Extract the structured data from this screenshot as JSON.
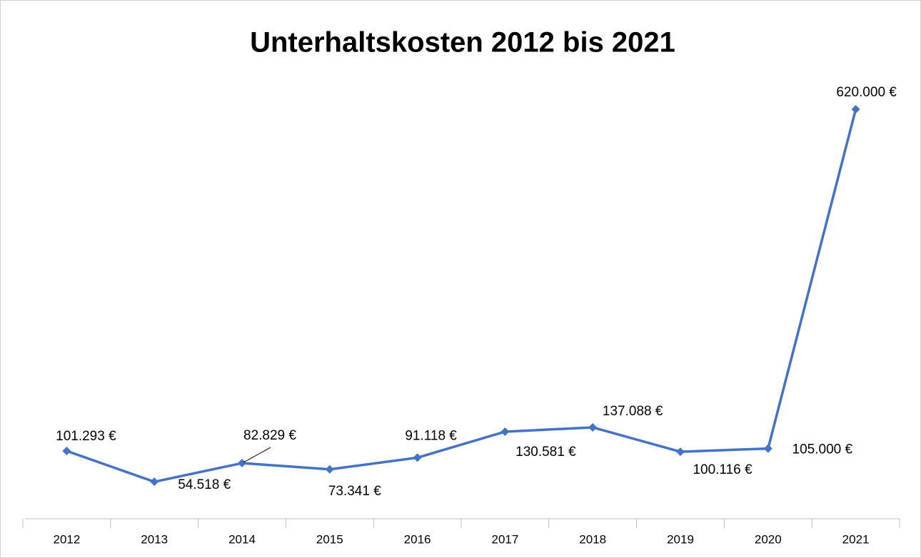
{
  "chart_data": {
    "type": "line",
    "title": "Unterhaltskosten  2012 bis 2021",
    "categories": [
      "2012",
      "2013",
      "2014",
      "2015",
      "2016",
      "2017",
      "2018",
      "2019",
      "2020",
      "2021"
    ],
    "values": [
      101293,
      54518,
      82829,
      73341,
      91118,
      130581,
      137088,
      100116,
      105000,
      620000
    ],
    "value_labels": [
      "101.293 €",
      "54.518 €",
      "82.829 €",
      "73.341 €",
      "91.118 €",
      "130.581 €",
      "137.088 €",
      "100.116 €",
      "105.000 €",
      "620.000 €"
    ],
    "color": "#4472c4",
    "ylim": [
      0,
      700000
    ]
  }
}
